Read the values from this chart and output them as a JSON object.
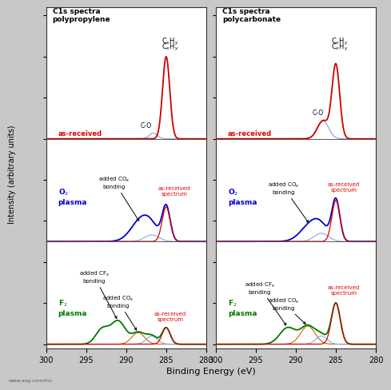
{
  "title_left": "C1s spectra\npolypropylene",
  "title_right": "C1s spectra\npolycarbonate",
  "xlabel": "Binding Energy (eV)",
  "ylabel": "Intensity (arbitrary units)",
  "watermark": "www.asg.com/mc",
  "background_color": "#c8c8c8",
  "panel_bg": "#ffffff",
  "colors": {
    "red": "#dd0000",
    "dark_red": "#cc0000",
    "blue": "#0000cc",
    "light_blue": "#88aadd",
    "green": "#007700",
    "orange": "#cc6600",
    "brown": "#886644"
  },
  "xlim": [
    300,
    280
  ],
  "xticks": [
    300,
    295,
    290,
    285,
    280
  ]
}
